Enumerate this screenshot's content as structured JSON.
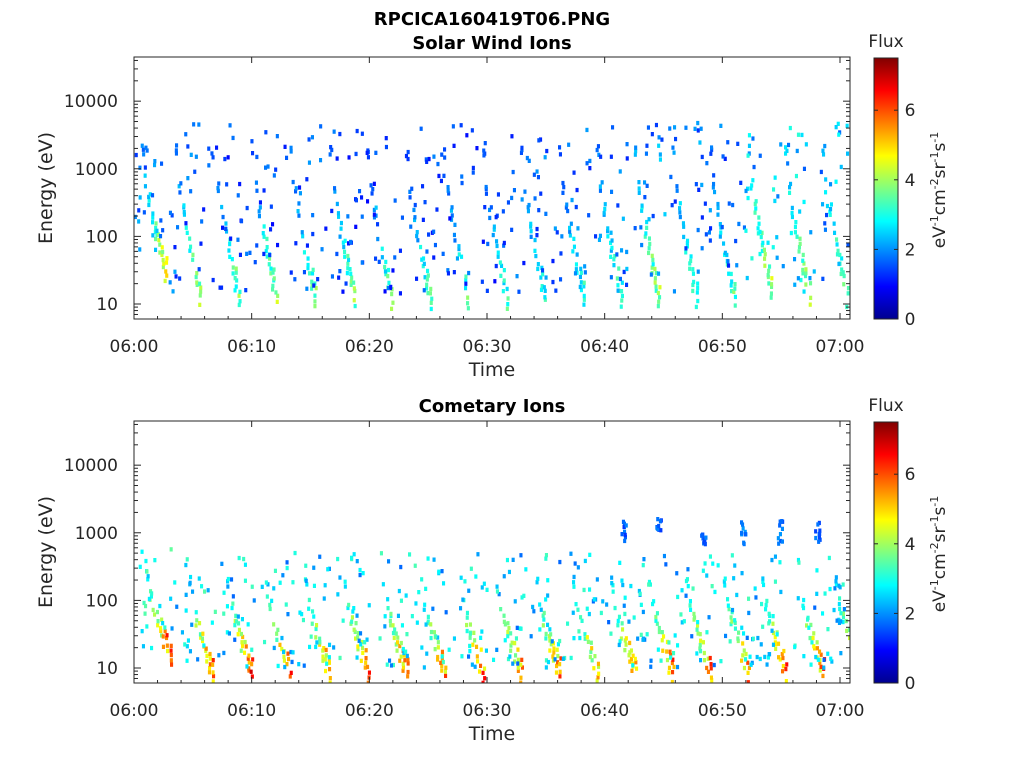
{
  "figure": {
    "title": "RPCICA160419T06.PNG"
  },
  "colormap": [
    "#00008f",
    "#0000ff",
    "#0080ff",
    "#00ffff",
    "#80ff80",
    "#ffff00",
    "#ff8000",
    "#ff0000",
    "#800000"
  ],
  "chart_data": [
    {
      "type": "heatmap",
      "title": "Solar Wind Ions",
      "xlabel": "Time",
      "ylabel": "Energy (eV)",
      "x_ticks": [
        "06:00",
        "06:10",
        "06:20",
        "06:30",
        "06:40",
        "06:50",
        "07:00"
      ],
      "x_range": [
        "06:00",
        "07:00"
      ],
      "y_scale": "log",
      "y_ticks": [
        "10",
        "100",
        "1000",
        "10000"
      ],
      "y_range": [
        6,
        45000
      ],
      "colorbar": {
        "label": "Flux",
        "unit": "eV-1cm-2sr-1s-1",
        "range": [
          0,
          7.5
        ],
        "ticks": [
          "0",
          "2",
          "4",
          "6"
        ]
      },
      "bursts": [
        {
          "t": 0.6,
          "e_hi": 2000,
          "e_lo": 35,
          "v_hi": 2.0,
          "v_lo": 4.8
        },
        {
          "t": 3.5,
          "e_hi": 2000,
          "e_lo": 15,
          "v_hi": 1.8,
          "v_lo": 4.2
        },
        {
          "t": 6.8,
          "e_hi": 2000,
          "e_lo": 15,
          "v_hi": 1.6,
          "v_lo": 4.0
        },
        {
          "t": 10.0,
          "e_hi": 2000,
          "e_lo": 15,
          "v_hi": 1.6,
          "v_lo": 4.2
        },
        {
          "t": 13.3,
          "e_hi": 2000,
          "e_lo": 15,
          "v_hi": 1.8,
          "v_lo": 3.8
        },
        {
          "t": 16.6,
          "e_hi": 2000,
          "e_lo": 15,
          "v_hi": 1.6,
          "v_lo": 4.0
        },
        {
          "t": 19.8,
          "e_hi": 1800,
          "e_lo": 14,
          "v_hi": 1.6,
          "v_lo": 3.8
        },
        {
          "t": 23.1,
          "e_hi": 1600,
          "e_lo": 14,
          "v_hi": 1.6,
          "v_lo": 3.6
        },
        {
          "t": 26.3,
          "e_hi": 1800,
          "e_lo": 14,
          "v_hi": 1.6,
          "v_lo": 3.6
        },
        {
          "t": 29.6,
          "e_hi": 1800,
          "e_lo": 14,
          "v_hi": 1.6,
          "v_lo": 3.4
        },
        {
          "t": 32.8,
          "e_hi": 2000,
          "e_lo": 15,
          "v_hi": 1.8,
          "v_lo": 3.2
        },
        {
          "t": 36.1,
          "e_hi": 2000,
          "e_lo": 15,
          "v_hi": 1.8,
          "v_lo": 3.2
        },
        {
          "t": 39.3,
          "e_hi": 2000,
          "e_lo": 15,
          "v_hi": 2.0,
          "v_lo": 3.4
        },
        {
          "t": 42.5,
          "e_hi": 2000,
          "e_lo": 15,
          "v_hi": 2.2,
          "v_lo": 4.2
        },
        {
          "t": 45.7,
          "e_hi": 2000,
          "e_lo": 15,
          "v_hi": 2.0,
          "v_lo": 3.6
        },
        {
          "t": 48.9,
          "e_hi": 2000,
          "e_lo": 15,
          "v_hi": 1.8,
          "v_lo": 3.6
        },
        {
          "t": 52.1,
          "e_hi": 2000,
          "e_lo": 20,
          "v_hi": 2.6,
          "v_lo": 4.4
        },
        {
          "t": 55.3,
          "e_hi": 2000,
          "e_lo": 15,
          "v_hi": 2.6,
          "v_lo": 4.2
        },
        {
          "t": 58.5,
          "e_hi": 2000,
          "e_lo": 15,
          "v_hi": 2.4,
          "v_lo": 3.8
        }
      ]
    },
    {
      "type": "heatmap",
      "title": "Cometary Ions",
      "xlabel": "Time",
      "ylabel": "Energy (eV)",
      "x_ticks": [
        "06:00",
        "06:10",
        "06:20",
        "06:30",
        "06:40",
        "06:50",
        "07:00"
      ],
      "x_range": [
        "06:00",
        "07:00"
      ],
      "y_scale": "log",
      "y_ticks": [
        "10",
        "100",
        "1000",
        "10000"
      ],
      "y_range": [
        6,
        45000
      ],
      "colorbar": {
        "label": "Flux",
        "unit": "eV-1cm-2sr-1s-1",
        "range": [
          0,
          7.5
        ],
        "ticks": [
          "0",
          "2",
          "4",
          "6"
        ]
      },
      "bursts": [
        {
          "t": 1.0,
          "e_hi": 250,
          "e_lo": 18,
          "v_hi": 3.0,
          "v_lo": 6.4
        },
        {
          "t": 4.6,
          "e_hi": 200,
          "e_lo": 10,
          "v_hi": 3.0,
          "v_lo": 6.0
        },
        {
          "t": 7.9,
          "e_hi": 200,
          "e_lo": 10,
          "v_hi": 2.8,
          "v_lo": 6.4
        },
        {
          "t": 11.2,
          "e_hi": 200,
          "e_lo": 10,
          "v_hi": 2.8,
          "v_lo": 6.2
        },
        {
          "t": 14.5,
          "e_hi": 200,
          "e_lo": 10,
          "v_hi": 2.8,
          "v_lo": 5.8
        },
        {
          "t": 17.8,
          "e_hi": 200,
          "e_lo": 10,
          "v_hi": 2.8,
          "v_lo": 6.4
        },
        {
          "t": 21.1,
          "e_hi": 200,
          "e_lo": 10,
          "v_hi": 2.8,
          "v_lo": 6.0
        },
        {
          "t": 24.3,
          "e_hi": 200,
          "e_lo": 10,
          "v_hi": 2.8,
          "v_lo": 5.8
        },
        {
          "t": 27.6,
          "e_hi": 200,
          "e_lo": 10,
          "v_hi": 2.8,
          "v_lo": 6.0
        },
        {
          "t": 30.8,
          "e_hi": 200,
          "e_lo": 10,
          "v_hi": 2.8,
          "v_lo": 5.6
        },
        {
          "t": 34.1,
          "e_hi": 200,
          "e_lo": 10,
          "v_hi": 2.8,
          "v_lo": 5.8
        },
        {
          "t": 37.3,
          "e_hi": 200,
          "e_lo": 10,
          "v_hi": 2.8,
          "v_lo": 5.4
        },
        {
          "t": 40.5,
          "e_hi": 200,
          "e_lo": 10,
          "v_hi": 2.8,
          "v_lo": 5.6
        },
        {
          "t": 43.7,
          "e_hi": 200,
          "e_lo": 10,
          "v_hi": 2.8,
          "v_lo": 6.0
        },
        {
          "t": 46.9,
          "e_hi": 200,
          "e_lo": 10,
          "v_hi": 2.8,
          "v_lo": 5.8
        },
        {
          "t": 50.1,
          "e_hi": 200,
          "e_lo": 10,
          "v_hi": 2.8,
          "v_lo": 5.8
        },
        {
          "t": 53.3,
          "e_hi": 200,
          "e_lo": 10,
          "v_hi": 2.8,
          "v_lo": 6.2
        },
        {
          "t": 56.5,
          "e_hi": 200,
          "e_lo": 10,
          "v_hi": 2.8,
          "v_lo": 6.2
        },
        {
          "t": 59.6,
          "e_hi": 200,
          "e_lo": 12,
          "v_hi": 2.8,
          "v_lo": 5.6
        }
      ],
      "high_energy_bursts": [
        {
          "t": 41.5,
          "e": 1000,
          "v": 1.6
        },
        {
          "t": 44.5,
          "e": 1100,
          "v": 1.6
        },
        {
          "t": 48.3,
          "e": 1000,
          "v": 1.6
        },
        {
          "t": 51.7,
          "e": 1000,
          "v": 1.8
        },
        {
          "t": 54.8,
          "e": 1000,
          "v": 1.8
        },
        {
          "t": 58.0,
          "e": 1000,
          "v": 1.6
        }
      ]
    }
  ]
}
